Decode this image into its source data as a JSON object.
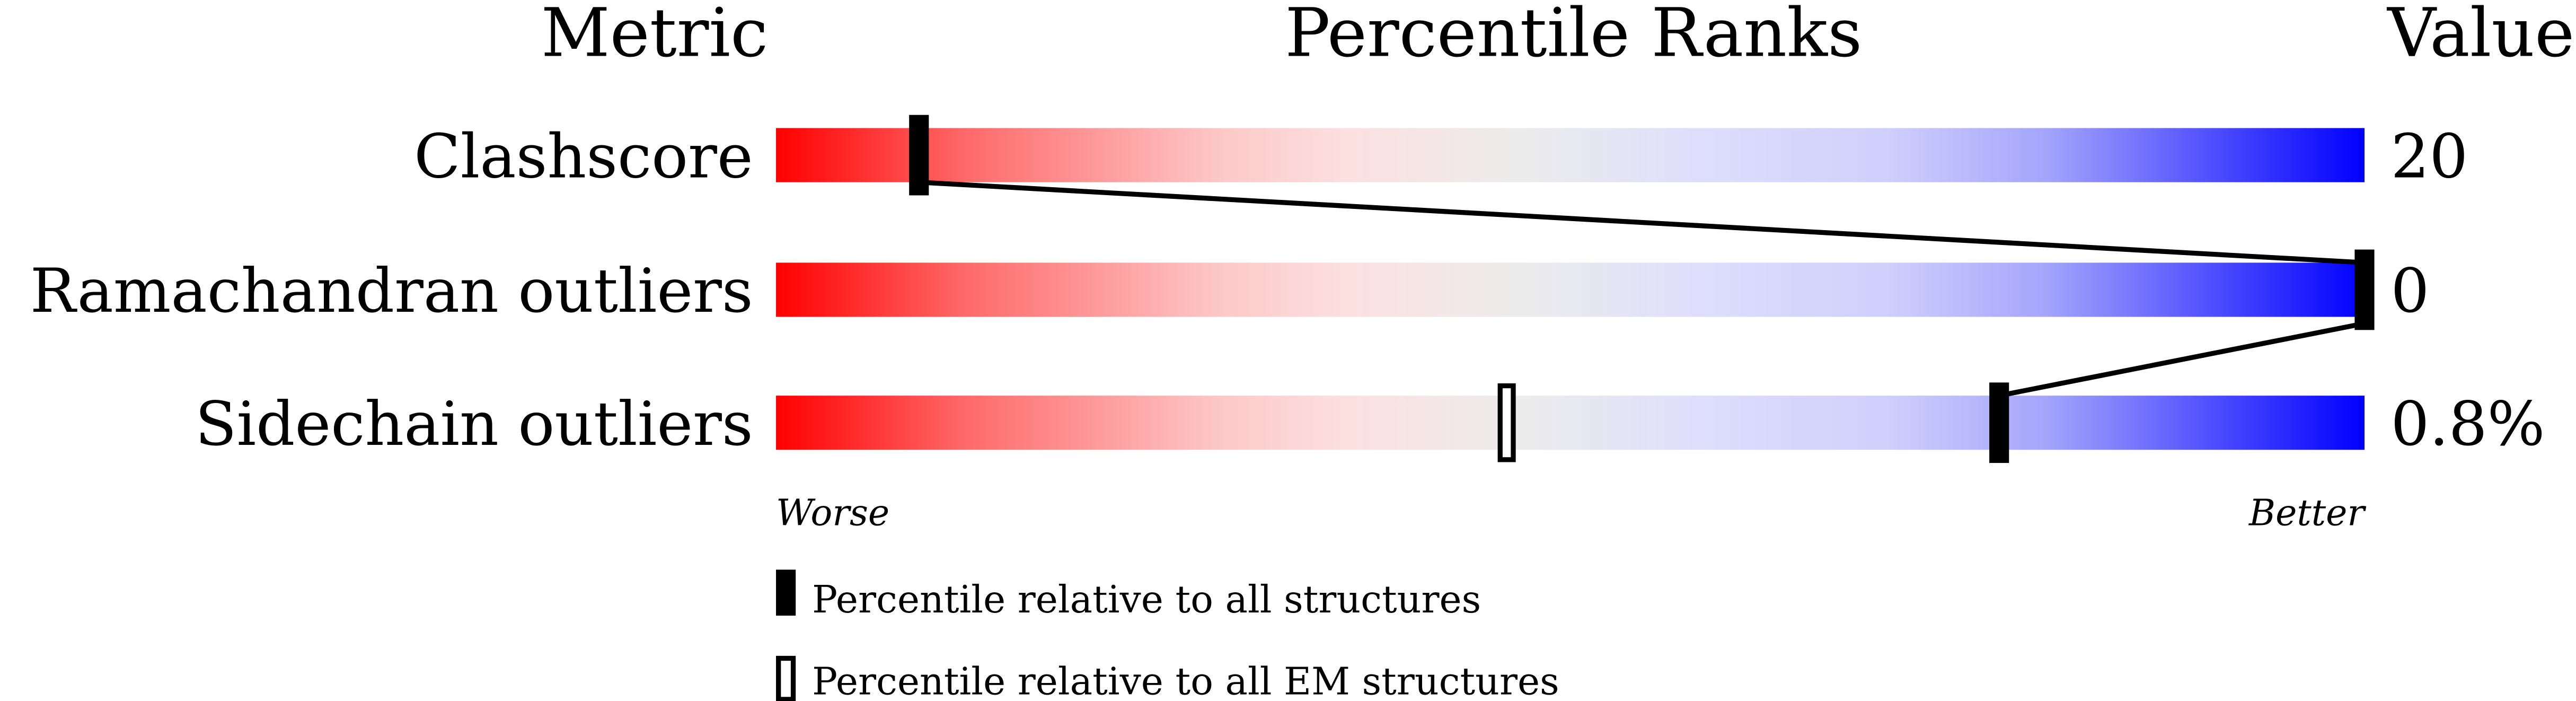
{
  "chart_data": {
    "type": "percentile-slider",
    "headers": {
      "metric": "Metric",
      "ranks": "Percentile Ranks",
      "value": "Value"
    },
    "xlim": [
      0,
      100
    ],
    "axis_labels": {
      "left": "Worse",
      "right": "Better"
    },
    "rows": [
      {
        "metric": "Clashscore",
        "value": "20",
        "percentile_all": 9,
        "percentile_em": null
      },
      {
        "metric": "Ramachandran outliers",
        "value": "0",
        "percentile_all": 100,
        "percentile_em": 100
      },
      {
        "metric": "Sidechain outliers",
        "value": "0.8%",
        "percentile_all": 77,
        "percentile_em": 46
      }
    ],
    "legend": {
      "all": "Percentile relative to all structures",
      "em": "Percentile relative to all EM structures"
    },
    "colors": {
      "worse": "#ff0000",
      "mid": "#ececec",
      "better": "#0000ff",
      "marker": "#000000"
    }
  }
}
